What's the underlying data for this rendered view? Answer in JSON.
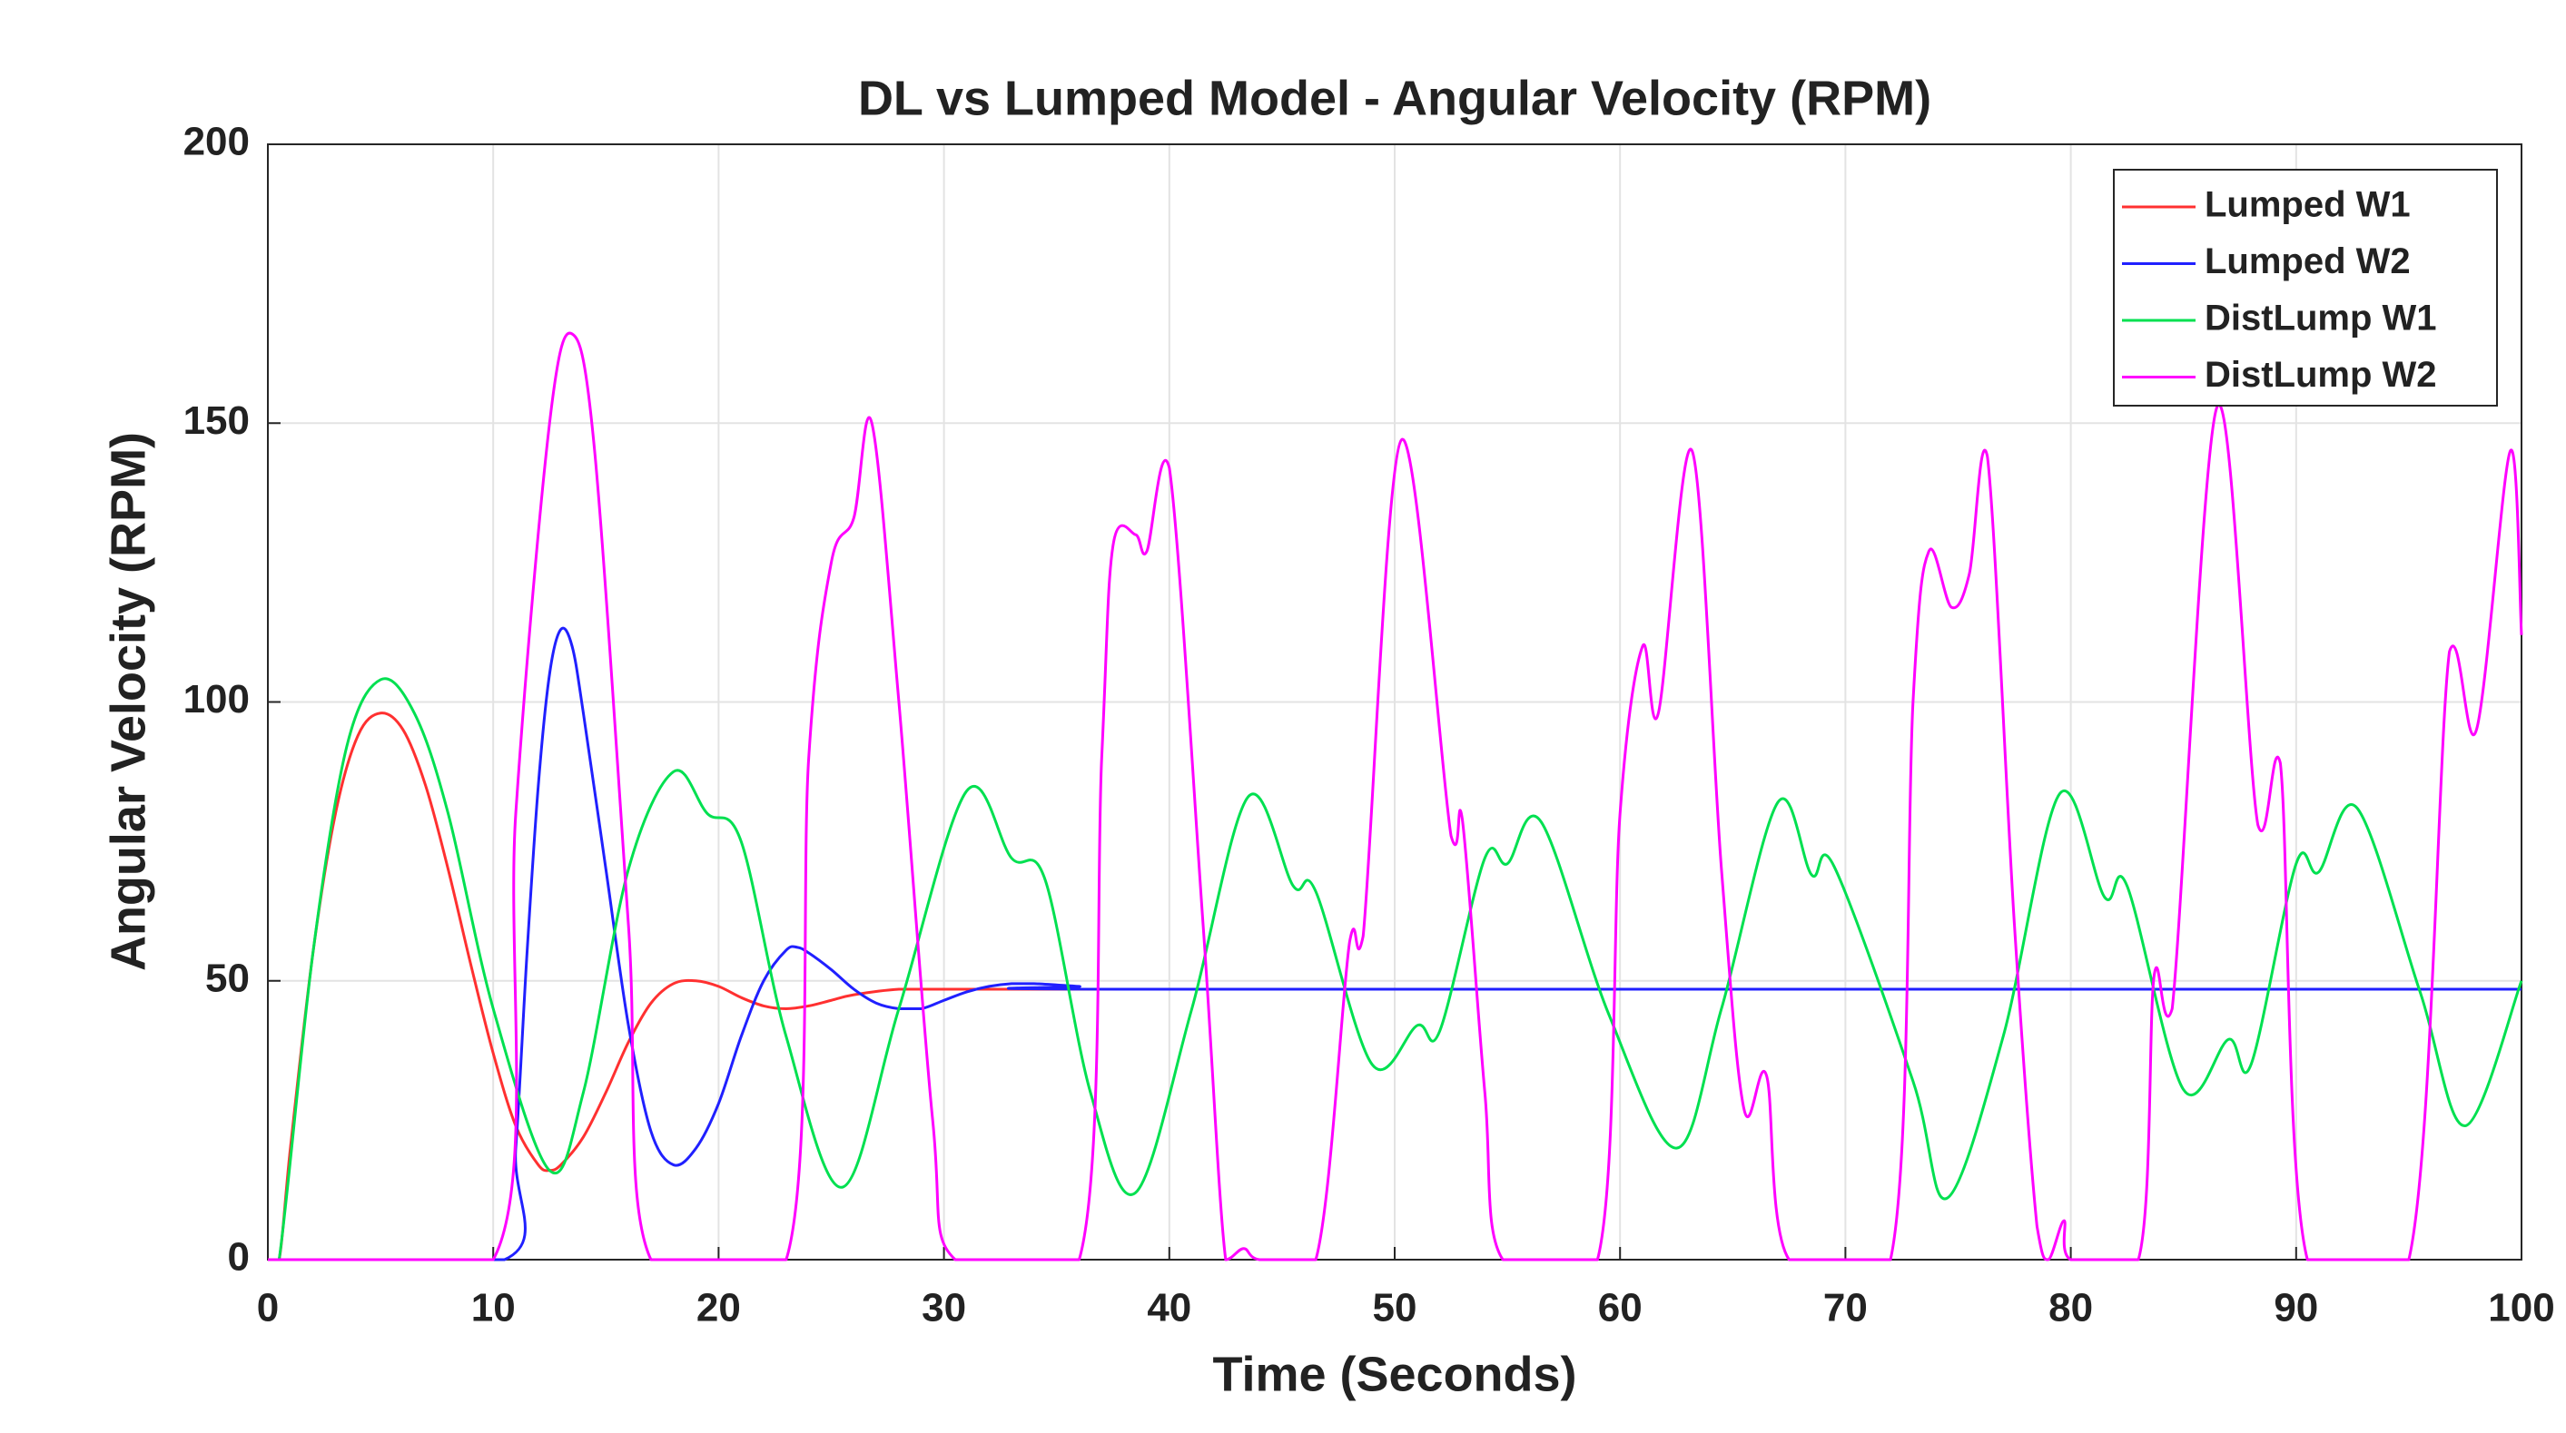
{
  "chart_data": {
    "type": "line",
    "title": "DL vs Lumped Model - Angular Velocity (RPM)",
    "xlabel": "Time (Seconds)",
    "ylabel": "Angular Velocity (RPM)",
    "xlim": [
      0,
      100
    ],
    "ylim": [
      0,
      200
    ],
    "xticks": [
      0,
      10,
      20,
      30,
      40,
      50,
      60,
      70,
      80,
      90,
      100
    ],
    "yticks": [
      0,
      50,
      100,
      150,
      200
    ],
    "grid": true,
    "legend": "upper right",
    "series": [
      {
        "name": "Lumped W1",
        "color": "#ff3030",
        "x": [
          0,
          0.5,
          1,
          2,
          3,
          4,
          5,
          6,
          7,
          8,
          9,
          10,
          11,
          12,
          12.5,
          13,
          14,
          15,
          16,
          17,
          18,
          19,
          20,
          21,
          22,
          23,
          24,
          25,
          26,
          28,
          30,
          35,
          100
        ],
        "values": [
          0,
          0,
          20,
          55,
          80,
          94,
          98,
          95,
          85,
          70,
          53,
          37,
          24,
          17,
          16,
          17,
          22,
          30,
          39,
          46,
          49.5,
          50,
          49,
          47,
          45.5,
          45,
          45.5,
          46.5,
          47.5,
          48.5,
          48.5,
          48.5,
          48.5
        ]
      },
      {
        "name": "Lumped W2",
        "color": "#2020ff",
        "x": [
          0,
          10.5,
          11,
          11.5,
          12,
          12.5,
          13,
          13.5,
          14,
          15,
          16,
          17,
          18,
          19,
          20,
          21,
          22,
          23,
          23.5,
          24,
          25,
          26,
          27,
          28,
          29,
          30,
          31,
          32,
          33,
          34,
          36,
          38,
          100
        ],
        "values": [
          0,
          0,
          20,
          55,
          85,
          105,
          113,
          110,
          98,
          70,
          42,
          23,
          17,
          20,
          28,
          40,
          50,
          55.5,
          56,
          55,
          52,
          48.5,
          46,
          45,
          45,
          46.5,
          48,
          49,
          49.5,
          49.5,
          49,
          48.5,
          48.5
        ]
      },
      {
        "name": "DistLump W1",
        "color": "#00e050",
        "x": [
          0,
          0.5,
          2,
          3.5,
          5,
          6.5,
          8,
          10,
          12.5,
          14,
          16,
          18,
          19.5,
          21,
          23,
          25.5,
          28,
          31,
          33,
          34.5,
          36.5,
          38.5,
          41,
          43.5,
          45.5,
          46.5,
          49,
          51,
          52,
          54,
          55,
          56.5,
          59.5,
          62.5,
          64.5,
          67,
          68.5,
          69.5,
          73,
          74.5,
          77,
          79.5,
          81.5,
          82.5,
          85,
          87,
          88,
          90,
          91,
          92.7,
          95.5,
          97.5,
          100
        ],
        "values": [
          0,
          0,
          55,
          92,
          104,
          98,
          80,
          45,
          16,
          30,
          70,
          87.5,
          80,
          75,
          40,
          13,
          45,
          84,
          72,
          68,
          30,
          12,
          45,
          83,
          67,
          66,
          35,
          42,
          41,
          72,
          71,
          78.5,
          44,
          20,
          45,
          82,
          69,
          70.5,
          32,
          11,
          40,
          83.5,
          65,
          67,
          30.5,
          39.5,
          35,
          71,
          69.5,
          81,
          48,
          24,
          50
        ]
      },
      {
        "name": "DistLump W2",
        "color": "#ff00ff",
        "x": [
          0,
          10,
          11,
          12.5,
          13.5,
          14.5,
          16,
          17,
          23,
          24,
          25,
          26,
          26.8,
          28,
          29.5,
          30.5,
          36,
          37,
          37.5,
          38.5,
          39,
          40,
          41.5,
          42.5,
          43.3,
          44,
          46.5,
          48,
          48.6,
          50.3,
          52.5,
          53,
          54,
          54.8,
          59,
          60,
          61,
          61.7,
          63.2,
          64.5,
          65.5,
          66.5,
          67.5,
          72,
          73,
          73.7,
          74.7,
          75.5,
          76.3,
          77.5,
          78.5,
          79,
          79.7,
          80,
          83,
          83.7,
          84.5,
          86.5,
          88.3,
          89.3,
          90.5,
          95,
          96.8,
          98,
          99.5,
          100
        ],
        "values": [
          0,
          0,
          80,
          150,
          166,
          145,
          60,
          0,
          0,
          90,
          125,
          133,
          150,
          100,
          25,
          0,
          0,
          90,
          128,
          130,
          127,
          142,
          60,
          0,
          2,
          0,
          0,
          57,
          58,
          147,
          76,
          79,
          30,
          0,
          0,
          80,
          110,
          98,
          145,
          70,
          27,
          33,
          0,
          0,
          100,
          127,
          117,
          123,
          144,
          60,
          6,
          0,
          7,
          0,
          0,
          51,
          45,
          153,
          78,
          89,
          0,
          0,
          109,
          95,
          145,
          112
        ]
      }
    ]
  }
}
